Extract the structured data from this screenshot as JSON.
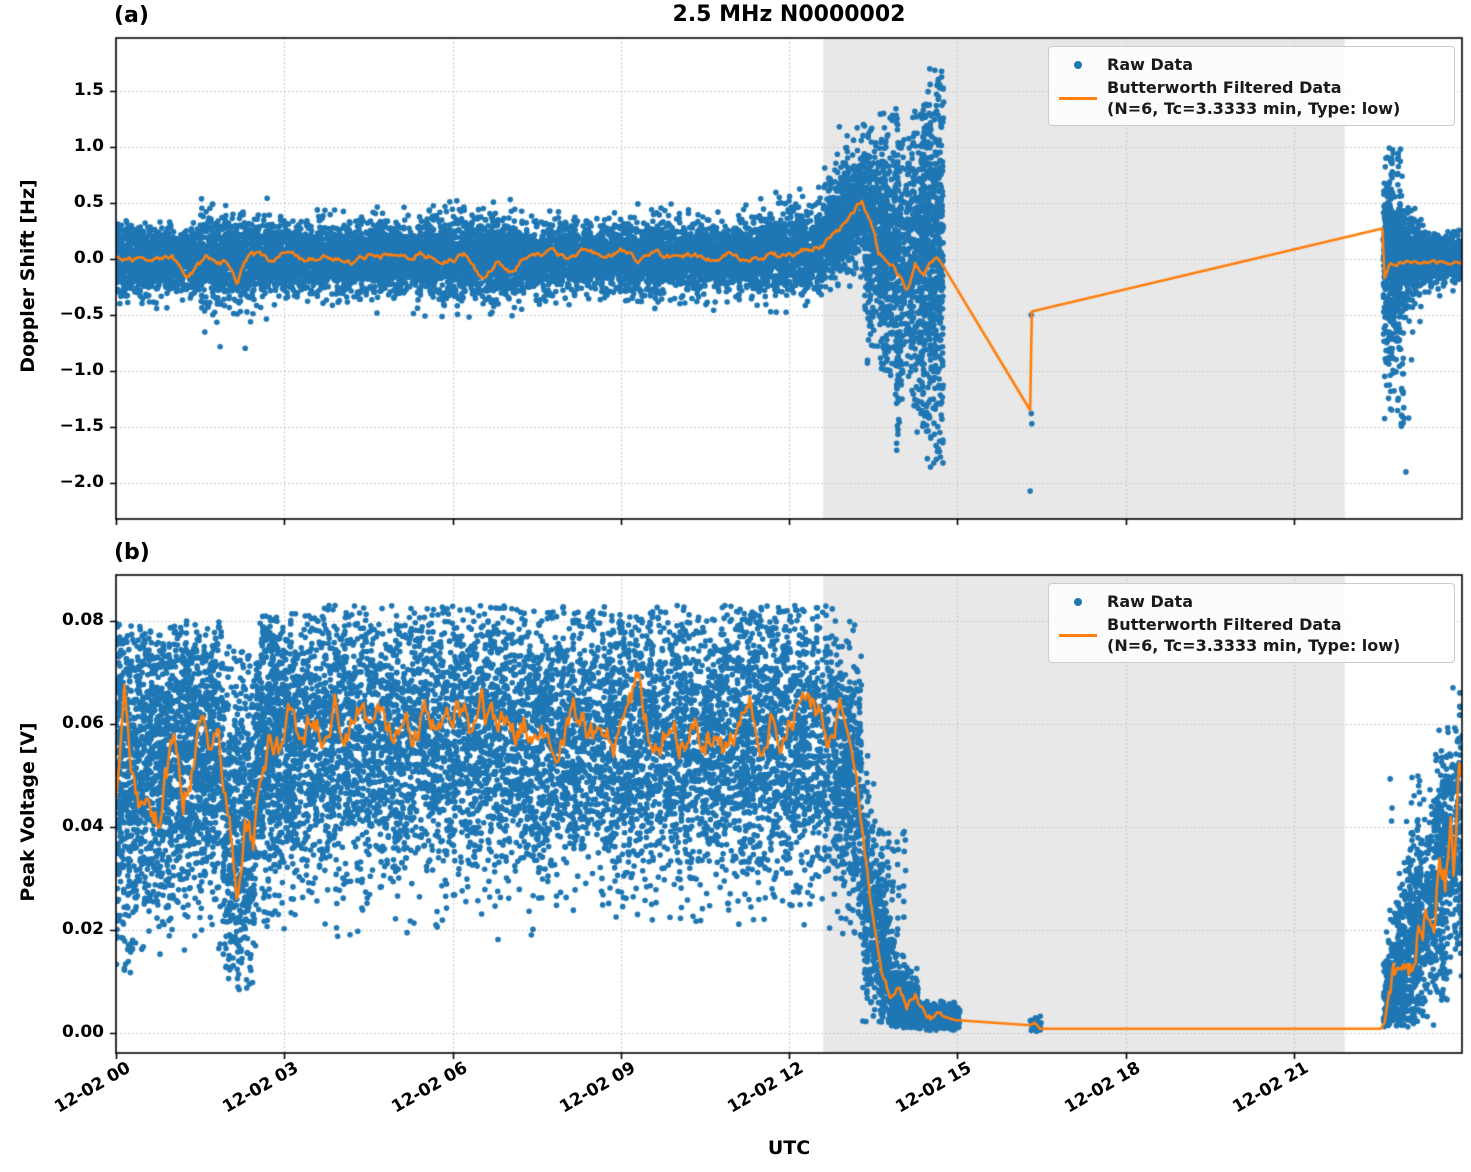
{
  "figure": {
    "title": "2.5 MHz N0000002",
    "xlabel": "UTC"
  },
  "colors": {
    "raw": "#1f77b4",
    "filtered": "#ff7f0e",
    "band": "#e8e8e8",
    "grid": "#bdbdbd",
    "spine": "#000000"
  },
  "legend": {
    "raw_label": "Raw Data",
    "filtered_label": "Butterworth Filtered Data",
    "filtered_sublabel": "(N=6, Tc=3.3333 min, Type: low)"
  },
  "x_axis": {
    "label": "UTC",
    "tick_hours": [
      0,
      3,
      6,
      9,
      12,
      15,
      18,
      21
    ],
    "tick_labels": [
      "12-02 00",
      "12-02 03",
      "12-02 06",
      "12-02 09",
      "12-02 12",
      "12-02 15",
      "12-02 18",
      "12-02 21"
    ],
    "xlim_hours": [
      0,
      24
    ]
  },
  "chart_data": [
    {
      "id": "a",
      "tag": "(a)",
      "type": "scatter+line",
      "title": "2.5 MHz N0000002",
      "xlabel": "UTC",
      "ylabel": "Doppler Shift [Hz]",
      "ylim": [
        -2.32,
        1.97
      ],
      "yticks": [
        1.5,
        1.0,
        0.5,
        0.0,
        -0.5,
        -1.0,
        -1.5,
        -2.0
      ],
      "ytick_labels": [
        "1.5",
        "1.0",
        "0.5",
        "0.0",
        "−0.5",
        "−1.0",
        "−1.5",
        "−2.0"
      ],
      "shaded_span_hours": [
        12.61,
        21.91
      ],
      "legend_position": "upper right",
      "grid": true,
      "filtered_line": {
        "name": "Butterworth Filtered Data (N=6, Tc=3.3333 min, Type: low)",
        "anchors": [
          [
            0,
            0.02
          ],
          [
            0.5,
            -0.02
          ],
          [
            1.0,
            0.0
          ],
          [
            1.3,
            -0.15
          ],
          [
            1.6,
            0.02
          ],
          [
            2.0,
            -0.05
          ],
          [
            2.15,
            -0.2
          ],
          [
            2.4,
            0.05
          ],
          [
            2.7,
            0.0
          ],
          [
            3.0,
            0.05
          ],
          [
            3.3,
            -0.02
          ],
          [
            3.7,
            0.03
          ],
          [
            4.2,
            -0.04
          ],
          [
            4.6,
            0.05
          ],
          [
            5.0,
            0.0
          ],
          [
            5.4,
            0.06
          ],
          [
            5.8,
            -0.02
          ],
          [
            6.2,
            0.04
          ],
          [
            6.55,
            -0.2
          ],
          [
            6.8,
            -0.02
          ],
          [
            7.0,
            -0.12
          ],
          [
            7.3,
            0.02
          ],
          [
            7.7,
            0.06
          ],
          [
            8.0,
            0.02
          ],
          [
            8.3,
            0.08
          ],
          [
            8.7,
            0.0
          ],
          [
            9.0,
            0.05
          ],
          [
            9.3,
            0.0
          ],
          [
            9.6,
            0.06
          ],
          [
            10.0,
            0.0
          ],
          [
            10.3,
            0.04
          ],
          [
            10.7,
            -0.02
          ],
          [
            11.0,
            0.05
          ],
          [
            11.3,
            0.0
          ],
          [
            11.6,
            0.04
          ],
          [
            12.0,
            0.02
          ],
          [
            12.3,
            0.1
          ],
          [
            12.6,
            0.12
          ],
          [
            12.9,
            0.25
          ],
          [
            13.1,
            0.4
          ],
          [
            13.3,
            0.52
          ],
          [
            13.45,
            0.35
          ],
          [
            13.6,
            0.05
          ],
          [
            13.75,
            -0.05
          ],
          [
            13.9,
            -0.1
          ],
          [
            14.1,
            -0.28
          ],
          [
            14.25,
            -0.05
          ],
          [
            14.4,
            -0.12
          ],
          [
            14.55,
            -0.02
          ],
          [
            14.7,
            -0.02
          ],
          [
            16.3,
            -1.35
          ],
          [
            16.33,
            -0.47
          ],
          [
            22.58,
            0.27
          ],
          [
            22.62,
            -0.17
          ],
          [
            22.7,
            -0.05
          ],
          [
            22.9,
            -0.02
          ],
          [
            23.2,
            -0.04
          ],
          [
            23.5,
            -0.02
          ],
          [
            23.8,
            -0.03
          ],
          [
            24,
            -0.02
          ]
        ],
        "wiggle_ranges": [
          [
            0,
            14.7,
            0.05
          ],
          [
            22.62,
            24,
            0.035
          ]
        ]
      },
      "raw_scatter": {
        "name": "Raw Data",
        "segments": [
          [
            0,
            0.6,
            500,
            0,
            0,
            0.17,
            0.15,
            -0.6,
            0.35
          ],
          [
            0.6,
            1.5,
            700,
            0,
            0,
            0.14,
            0.14,
            -0.75,
            0.35
          ],
          [
            1.5,
            2.7,
            900,
            0,
            0,
            0.2,
            0.18,
            -0.8,
            0.6
          ],
          [
            2.7,
            5.4,
            2000,
            0,
            0,
            0.15,
            0.15,
            -0.6,
            0.5
          ],
          [
            5.4,
            7.3,
            1400,
            0.02,
            0,
            0.18,
            0.18,
            -0.7,
            0.8
          ],
          [
            7.3,
            11.4,
            3000,
            0,
            0.02,
            0.15,
            0.15,
            -0.5,
            0.7
          ],
          [
            11.4,
            12.6,
            900,
            0.02,
            0.1,
            0.17,
            0.2,
            -0.5,
            0.7
          ],
          [
            12.6,
            13.35,
            700,
            0.15,
            0.55,
            0.22,
            0.28,
            -0.3,
            1.2
          ],
          [
            13.35,
            13.9,
            550,
            0.3,
            0.0,
            0.35,
            0.5,
            -1.1,
            1.35
          ],
          [
            13.9,
            14.45,
            500,
            -0.1,
            0.0,
            0.55,
            0.6,
            -1.75,
            1.5
          ],
          [
            14.45,
            14.75,
            380,
            0.0,
            0.0,
            0.6,
            0.7,
            -2.0,
            1.78
          ],
          [
            22.6,
            22.9,
            420,
            0.0,
            0.0,
            0.45,
            0.3,
            -1.55,
            1.05
          ],
          [
            22.9,
            23.3,
            360,
            0.0,
            0.0,
            0.25,
            0.15,
            -1.0,
            0.6
          ],
          [
            23.3,
            24,
            420,
            0.0,
            0.0,
            0.12,
            0.1,
            -0.5,
            0.35
          ]
        ],
        "streaks": [
          [
            13.4,
            13.9,
            12,
            -1.0,
            1.3
          ],
          [
            13.9,
            14.45,
            15,
            -1.6,
            1.4
          ],
          [
            14.45,
            14.75,
            12,
            -1.9,
            1.7
          ],
          [
            22.6,
            22.95,
            10,
            -1.5,
            1.0
          ]
        ],
        "outliers": [
          [
            16.32,
            -0.5
          ],
          [
            16.32,
            -1.38
          ],
          [
            16.33,
            -1.47
          ],
          [
            16.3,
            -2.07
          ],
          [
            23.0,
            -1.9
          ],
          [
            23.05,
            -1.42
          ],
          [
            23.1,
            -0.9
          ],
          [
            22.95,
            -1.2
          ]
        ]
      }
    },
    {
      "id": "b",
      "tag": "(b)",
      "type": "scatter+line",
      "xlabel": "UTC",
      "ylabel": "Peak Voltage [V]",
      "ylim": [
        -0.0039,
        0.0889
      ],
      "yticks": [
        0.08,
        0.06,
        0.04,
        0.02,
        0.0
      ],
      "ytick_labels": [
        "0.08",
        "0.06",
        "0.04",
        "0.02",
        "0.00"
      ],
      "shaded_span_hours": [
        12.61,
        21.91
      ],
      "legend_position": "upper right",
      "grid": true,
      "filtered_line": {
        "name": "Butterworth Filtered Data (N=6, Tc=3.3333 min, Type: low)",
        "anchors": [
          [
            0,
            0.046
          ],
          [
            0.15,
            0.063
          ],
          [
            0.3,
            0.05
          ],
          [
            0.45,
            0.044
          ],
          [
            0.6,
            0.048
          ],
          [
            0.75,
            0.042
          ],
          [
            0.9,
            0.05
          ],
          [
            1.05,
            0.058
          ],
          [
            1.2,
            0.047
          ],
          [
            1.35,
            0.052
          ],
          [
            1.5,
            0.06
          ],
          [
            1.65,
            0.055
          ],
          [
            1.8,
            0.06
          ],
          [
            1.95,
            0.048
          ],
          [
            2.05,
            0.038
          ],
          [
            2.15,
            0.028
          ],
          [
            2.3,
            0.042
          ],
          [
            2.45,
            0.035
          ],
          [
            2.6,
            0.051
          ],
          [
            2.75,
            0.058
          ],
          [
            2.9,
            0.055
          ],
          [
            3.1,
            0.06
          ],
          [
            3.3,
            0.057
          ],
          [
            3.5,
            0.062
          ],
          [
            3.7,
            0.058
          ],
          [
            3.9,
            0.064
          ],
          [
            4.1,
            0.059
          ],
          [
            4.3,
            0.063
          ],
          [
            4.5,
            0.06
          ],
          [
            4.7,
            0.065
          ],
          [
            4.9,
            0.059
          ],
          [
            5.1,
            0.063
          ],
          [
            5.3,
            0.058
          ],
          [
            5.5,
            0.062
          ],
          [
            5.7,
            0.057
          ],
          [
            5.9,
            0.062
          ],
          [
            6.1,
            0.066
          ],
          [
            6.3,
            0.06
          ],
          [
            6.5,
            0.064
          ],
          [
            6.7,
            0.059
          ],
          [
            6.9,
            0.063
          ],
          [
            7.1,
            0.057
          ],
          [
            7.3,
            0.061
          ],
          [
            7.5,
            0.056
          ],
          [
            7.7,
            0.06
          ],
          [
            7.9,
            0.055
          ],
          [
            8.1,
            0.06
          ],
          [
            8.3,
            0.064
          ],
          [
            8.5,
            0.058
          ],
          [
            8.7,
            0.062
          ],
          [
            8.9,
            0.056
          ],
          [
            9.1,
            0.063
          ],
          [
            9.3,
            0.068
          ],
          [
            9.5,
            0.06
          ],
          [
            9.7,
            0.055
          ],
          [
            9.9,
            0.061
          ],
          [
            10.1,
            0.057
          ],
          [
            10.3,
            0.062
          ],
          [
            10.5,
            0.056
          ],
          [
            10.7,
            0.06
          ],
          [
            10.9,
            0.054
          ],
          [
            11.1,
            0.059
          ],
          [
            11.3,
            0.064
          ],
          [
            11.5,
            0.059
          ],
          [
            11.7,
            0.063
          ],
          [
            11.9,
            0.058
          ],
          [
            12.1,
            0.063
          ],
          [
            12.3,
            0.068
          ],
          [
            12.5,
            0.062
          ],
          [
            12.7,
            0.058
          ],
          [
            12.9,
            0.062
          ],
          [
            13.05,
            0.058
          ],
          [
            13.2,
            0.05
          ],
          [
            13.35,
            0.035
          ],
          [
            13.5,
            0.022
          ],
          [
            13.65,
            0.012
          ],
          [
            13.8,
            0.007
          ],
          [
            13.95,
            0.01
          ],
          [
            14.1,
            0.005
          ],
          [
            14.25,
            0.008
          ],
          [
            14.4,
            0.004
          ],
          [
            14.55,
            0.003
          ],
          [
            14.75,
            0.003
          ],
          [
            14.95,
            0.0025
          ],
          [
            16.3,
            0.0015
          ],
          [
            16.38,
            0.002
          ],
          [
            16.48,
            0.0008
          ],
          [
            22.55,
            0.0008
          ],
          [
            22.62,
            0.002
          ],
          [
            22.7,
            0.008
          ],
          [
            22.8,
            0.012
          ],
          [
            22.9,
            0.01
          ],
          [
            23.0,
            0.015
          ],
          [
            23.1,
            0.012
          ],
          [
            23.2,
            0.02
          ],
          [
            23.3,
            0.016
          ],
          [
            23.4,
            0.024
          ],
          [
            23.5,
            0.018
          ],
          [
            23.6,
            0.036
          ],
          [
            23.7,
            0.03
          ],
          [
            23.8,
            0.045
          ],
          [
            23.85,
            0.032
          ],
          [
            23.95,
            0.052
          ],
          [
            24,
            0.048
          ]
        ],
        "wiggle_ranges": [
          [
            0,
            13.0,
            0.0055
          ],
          [
            13.0,
            14.9,
            0.0015
          ],
          [
            22.7,
            24,
            0.006
          ]
        ]
      },
      "raw_scatter": {
        "name": "Raw Data",
        "segments": [
          [
            0,
            0.35,
            420,
            0.05,
            0.05,
            0.018,
            0.018,
            0.01,
            0.08
          ],
          [
            0.35,
            1.0,
            700,
            0.055,
            0.05,
            0.016,
            0.016,
            0.013,
            0.079
          ],
          [
            1.0,
            1.9,
            900,
            0.055,
            0.055,
            0.015,
            0.015,
            0.015,
            0.08
          ],
          [
            1.9,
            2.5,
            600,
            0.04,
            0.04,
            0.018,
            0.018,
            0.008,
            0.075
          ],
          [
            2.5,
            3.2,
            800,
            0.055,
            0.058,
            0.015,
            0.014,
            0.02,
            0.082
          ],
          [
            3.2,
            12.8,
            7000,
            0.057,
            0.057,
            0.014,
            0.014,
            0.018,
            0.083
          ],
          [
            12.8,
            13.3,
            500,
            0.055,
            0.045,
            0.013,
            0.014,
            0.015,
            0.08
          ],
          [
            13.3,
            13.8,
            450,
            0.03,
            0.012,
            0.012,
            0.008,
            0.002,
            0.06
          ],
          [
            13.8,
            14.3,
            400,
            0.008,
            0.004,
            0.005,
            0.003,
            0.001,
            0.03
          ],
          [
            14.3,
            15.05,
            350,
            0.003,
            0.003,
            0.0015,
            0.0015,
            0.0005,
            0.012
          ],
          [
            16.3,
            16.5,
            30,
            0.0015,
            0.0015,
            0.001,
            0.001,
            0.0003,
            0.004
          ],
          [
            22.6,
            23.0,
            360,
            0.006,
            0.012,
            0.005,
            0.008,
            0.001,
            0.035
          ],
          [
            23.0,
            23.5,
            420,
            0.015,
            0.025,
            0.009,
            0.011,
            0.001,
            0.05
          ],
          [
            23.5,
            24,
            460,
            0.03,
            0.04,
            0.012,
            0.012,
            0.003,
            0.068
          ]
        ],
        "streaks": [
          [
            13.4,
            14.1,
            8,
            0.002,
            0.04
          ],
          [
            22.7,
            23.9,
            8,
            0.004,
            0.05
          ]
        ],
        "outliers": []
      }
    }
  ]
}
